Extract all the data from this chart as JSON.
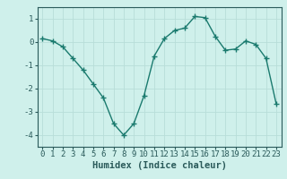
{
  "x": [
    0,
    1,
    2,
    3,
    4,
    5,
    6,
    7,
    8,
    9,
    10,
    11,
    12,
    13,
    14,
    15,
    16,
    17,
    18,
    19,
    20,
    21,
    22,
    23
  ],
  "y": [
    0.15,
    0.05,
    -0.2,
    -0.7,
    -1.2,
    -1.8,
    -2.4,
    -3.5,
    -4.0,
    -3.5,
    -2.3,
    -0.6,
    0.15,
    0.5,
    0.6,
    1.1,
    1.05,
    0.25,
    -0.35,
    -0.3,
    0.05,
    -0.1,
    -0.7,
    -2.65
  ],
  "xlabel": "Humidex (Indice chaleur)",
  "ylim": [
    -4.5,
    1.5
  ],
  "xlim": [
    -0.5,
    23.5
  ],
  "yticks": [
    1,
    0,
    -1,
    -2,
    -3,
    -4
  ],
  "xticks": [
    0,
    1,
    2,
    3,
    4,
    5,
    6,
    7,
    8,
    9,
    10,
    11,
    12,
    13,
    14,
    15,
    16,
    17,
    18,
    19,
    20,
    21,
    22,
    23
  ],
  "line_color": "#1a7a6e",
  "marker_color": "#1a7a6e",
  "bg_color": "#cff0eb",
  "grid_color": "#b8ddd8",
  "axis_color": "#2a5a5a",
  "xlabel_fontsize": 7.5,
  "tick_fontsize": 6.5
}
